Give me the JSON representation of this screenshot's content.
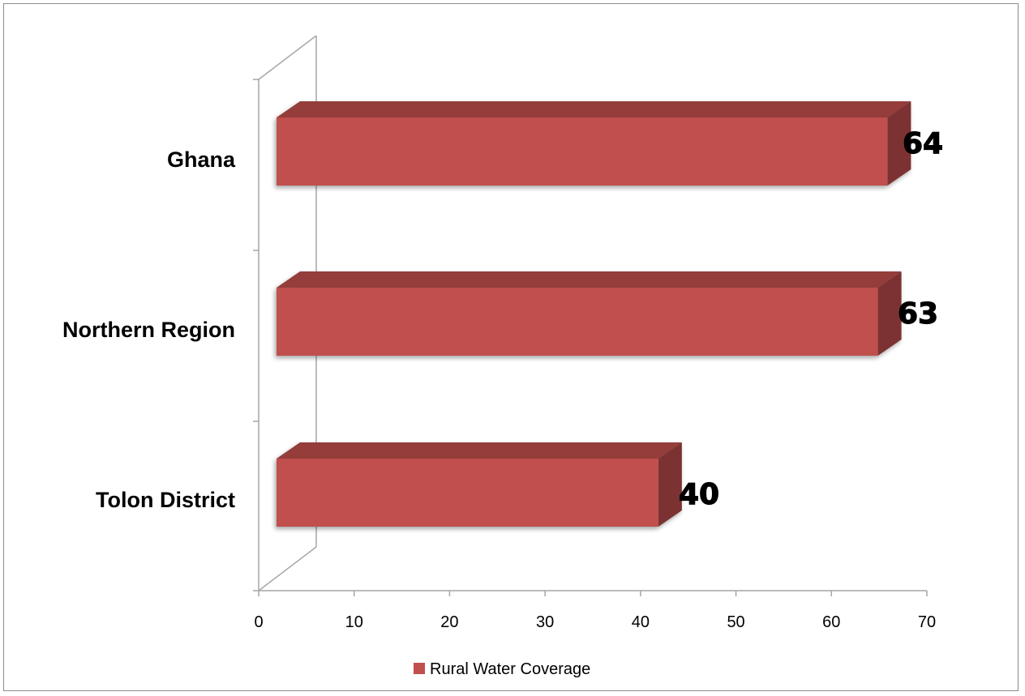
{
  "chart_data": {
    "type": "bar",
    "orientation": "horizontal",
    "three_d": true,
    "categories": [
      "Ghana",
      "Northern Region",
      "Tolon District"
    ],
    "series": [
      {
        "name": "Rural Water Coverage",
        "values": [
          64,
          63,
          40
        ],
        "color": "#C0504D"
      }
    ],
    "data_labels": [
      "64",
      "63",
      "40"
    ],
    "xlim": [
      0,
      70
    ],
    "x_ticks": [
      0,
      10,
      20,
      30,
      40,
      50,
      60,
      70
    ],
    "grid": false,
    "legend_position": "bottom"
  }
}
